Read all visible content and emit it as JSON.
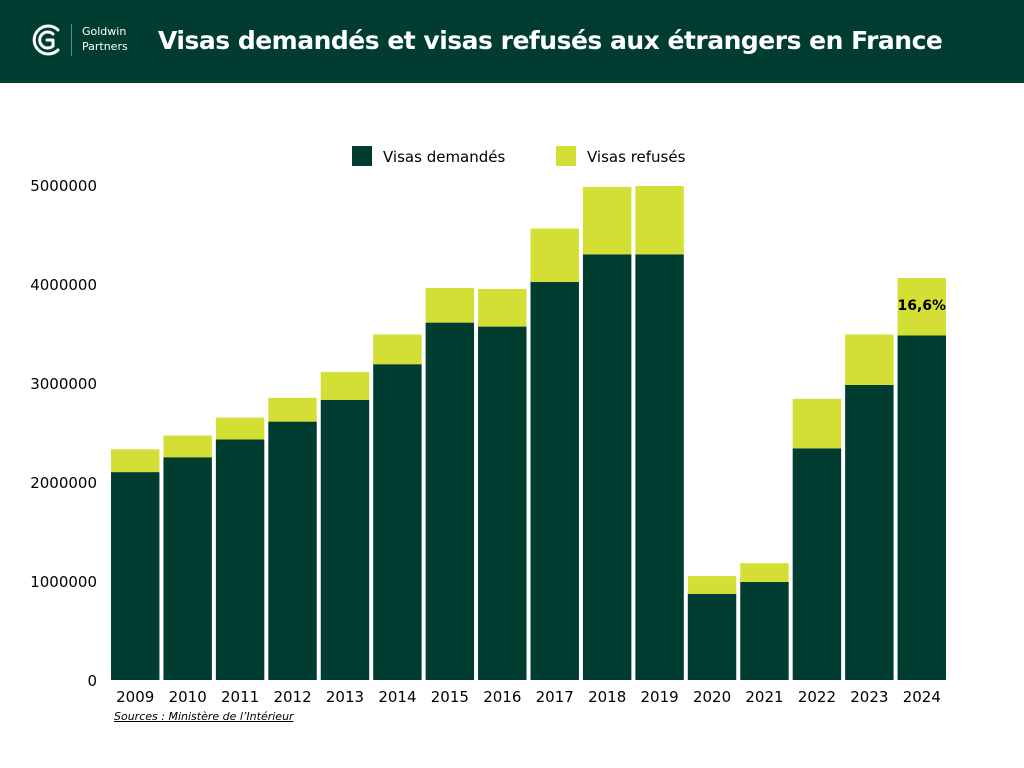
{
  "header": {
    "brand_line1": "Goldwin",
    "brand_line2": "Partners",
    "title": "Visas demandés et visas refusés aux étrangers en France"
  },
  "source": "Sources : Ministère de l’Intérieur",
  "colors": {
    "header_bg": "#003d30",
    "demandes": "#003d30",
    "refuses": "#d4df36"
  },
  "chart_data": {
    "type": "bar",
    "stacked": true,
    "categories": [
      "2009",
      "2010",
      "2011",
      "2012",
      "2013",
      "2014",
      "2015",
      "2016",
      "2017",
      "2018",
      "2019",
      "2020",
      "2021",
      "2022",
      "2023",
      "2024"
    ],
    "series": [
      {
        "name": "Visas demandés",
        "color": "#003d30",
        "values": [
          2100000,
          2250000,
          2430000,
          2610000,
          2830000,
          3190000,
          3610000,
          3570000,
          4020000,
          4300000,
          4300000,
          870000,
          990000,
          2340000,
          2980000,
          3480000
        ]
      },
      {
        "name": "Visas refusés",
        "color": "#d4df36",
        "values": [
          230000,
          220000,
          220000,
          240000,
          280000,
          300000,
          350000,
          380000,
          540000,
          680000,
          690000,
          180000,
          190000,
          500000,
          510000,
          580000
        ]
      }
    ],
    "yticks": [
      0,
      1000000,
      2000000,
      3000000,
      4000000,
      5000000
    ],
    "ylim": [
      0,
      5000000
    ],
    "annotations": [
      {
        "category": "2024",
        "text": "16,6%"
      }
    ],
    "legend_position": "top-center",
    "grid": false
  }
}
